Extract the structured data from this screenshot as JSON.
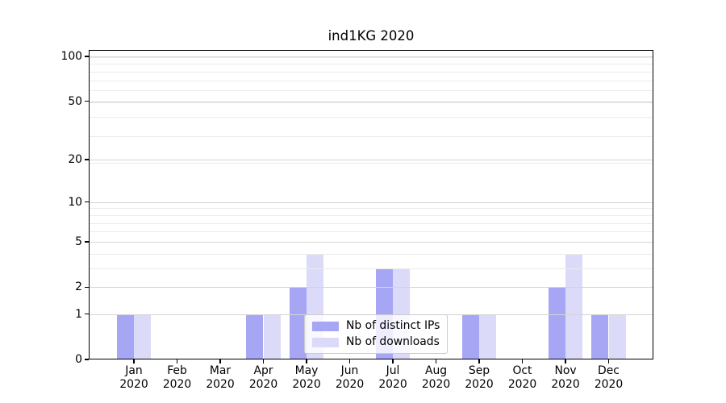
{
  "title": "ind1KG 2020",
  "chart_data": {
    "type": "bar",
    "title": "ind1KG 2020",
    "categories": [
      "Jan 2020",
      "Feb 2020",
      "Mar 2020",
      "Apr 2020",
      "May 2020",
      "Jun 2020",
      "Jul 2020",
      "Aug 2020",
      "Sep 2020",
      "Oct 2020",
      "Nov 2020",
      "Dec 2020"
    ],
    "series": [
      {
        "name": "Nb of distinct IPs",
        "color": "#a6a6f4",
        "values": [
          1,
          0,
          0,
          1,
          2,
          0,
          3,
          0,
          1,
          0,
          2,
          1
        ]
      },
      {
        "name": "Nb of downloads",
        "color": "#dbdbf9",
        "values": [
          1,
          0,
          0,
          1,
          4,
          0,
          3,
          0,
          1,
          0,
          4,
          1
        ]
      }
    ],
    "yscale": "log10(1+x)",
    "ylim": [
      0,
      110
    ],
    "yticks": [
      0,
      1,
      2,
      5,
      10,
      20,
      50,
      100
    ],
    "minor_grid_values": [
      3,
      4,
      6,
      7,
      8,
      9,
      19,
      29,
      39,
      49,
      59,
      69,
      79,
      89,
      99
    ],
    "grid": "on",
    "legend": {
      "position": "lower center"
    },
    "colors": {
      "major_grid": "#d4d4d4",
      "minor_grid": "#ebebeb",
      "spine": "#000000",
      "background": "#ffffff"
    }
  }
}
